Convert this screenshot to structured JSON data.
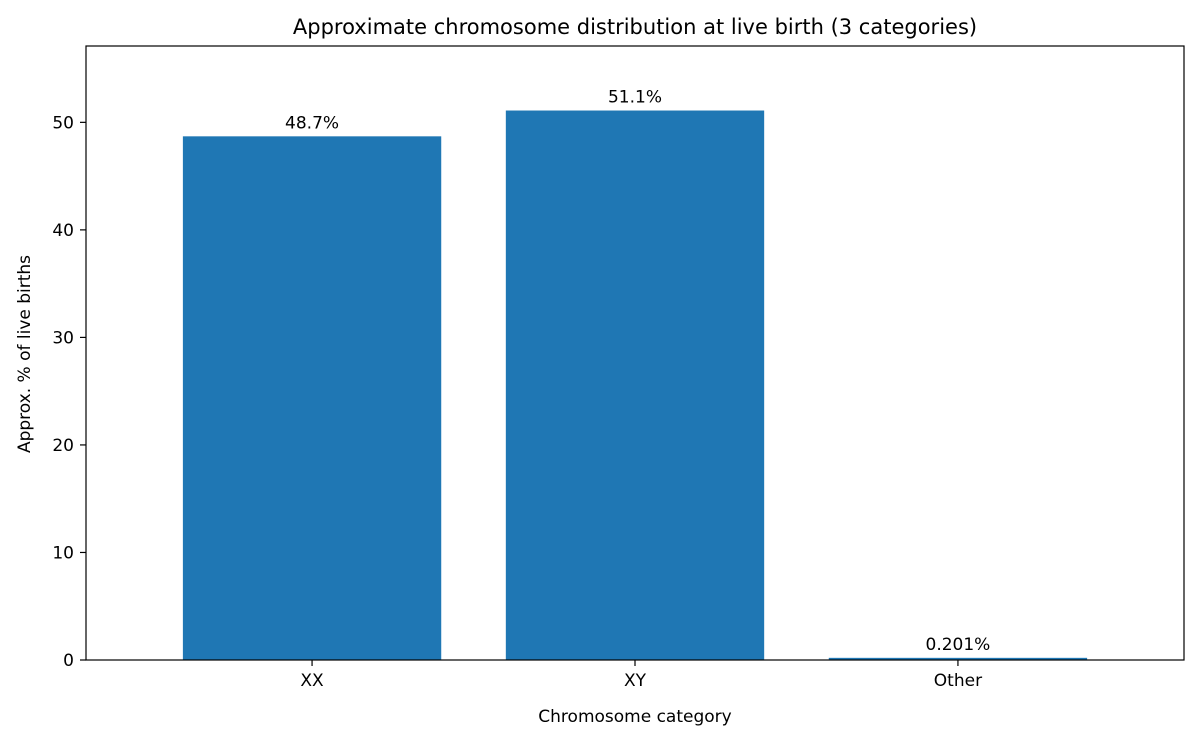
{
  "chart_data": {
    "type": "bar",
    "title": "Approximate chromosome distribution at live birth (3 categories)",
    "xlabel": "Chromosome category",
    "ylabel": "Approx. % of live births",
    "categories": [
      "XX",
      "XY",
      "Other"
    ],
    "values": [
      48.7,
      51.1,
      0.201
    ],
    "data_labels": [
      "48.7%",
      "51.1%",
      "0.201%"
    ],
    "ylim": [
      0,
      57.1
    ],
    "yticks": [
      0,
      10,
      20,
      30,
      40,
      50
    ],
    "grid": false,
    "legend": "none",
    "bar_color": "#1f77b4"
  }
}
